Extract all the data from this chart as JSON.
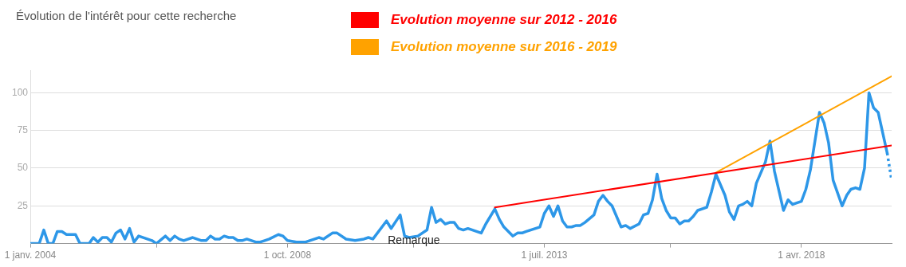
{
  "chart_data": {
    "type": "line",
    "title": "Évolution de l'intérêt pour cette recherche",
    "xlim": [
      "2004-01",
      "2019-12"
    ],
    "xticks": [
      {
        "value": "2004-01",
        "label": "1 janv. 2004"
      },
      {
        "value": "2006-05",
        "label": null
      },
      {
        "value": "2008-10",
        "label": "1 oct. 2008"
      },
      {
        "value": "2011-02",
        "label": null
      },
      {
        "value": "2013-07",
        "label": "1 juil. 2013"
      },
      {
        "value": "2015-11",
        "label": null
      },
      {
        "value": "2018-04",
        "label": "1 avr. 2018"
      }
    ],
    "ylim": [
      0,
      115
    ],
    "yticks": [
      25,
      50,
      75,
      100
    ],
    "grid": "y",
    "legend": "top",
    "marker": "none",
    "annotations": [
      {
        "text": "Remarque",
        "x": "2011-02",
        "y": 2
      }
    ],
    "series": [
      {
        "color": "#2d97e8",
        "line_style": "solid",
        "x": [
          "2004-01",
          "2004-03",
          "2004-04",
          "2004-05",
          "2004-06",
          "2004-07",
          "2004-08",
          "2004-09",
          "2004-11",
          "2004-12",
          "2005-02",
          "2005-03",
          "2005-04",
          "2005-05",
          "2005-06",
          "2005-07",
          "2005-08",
          "2005-09",
          "2005-10",
          "2005-11",
          "2005-12",
          "2006-01",
          "2006-03",
          "2006-04",
          "2006-05",
          "2006-07",
          "2006-08",
          "2006-09",
          "2006-10",
          "2006-11",
          "2007-01",
          "2007-03",
          "2007-04",
          "2007-05",
          "2007-06",
          "2007-07",
          "2007-08",
          "2007-09",
          "2007-10",
          "2007-11",
          "2007-12",
          "2008-01",
          "2008-03",
          "2008-04",
          "2008-05",
          "2008-06",
          "2008-08",
          "2008-09",
          "2008-10",
          "2008-12",
          "2009-02",
          "2009-05",
          "2009-06",
          "2009-08",
          "2009-09",
          "2009-11",
          "2010-01",
          "2010-03",
          "2010-04",
          "2010-05",
          "2010-08",
          "2010-09",
          "2010-11",
          "2010-12",
          "2011-01",
          "2011-03",
          "2011-05",
          "2011-06",
          "2011-07",
          "2011-08",
          "2011-09",
          "2011-10",
          "2011-11",
          "2011-12",
          "2012-01",
          "2012-02",
          "2012-05",
          "2012-06",
          "2012-08",
          "2012-09",
          "2012-10",
          "2012-12",
          "2013-01",
          "2013-02",
          "2013-03",
          "2013-06",
          "2013-07",
          "2013-08",
          "2013-09",
          "2013-10",
          "2013-11",
          "2013-12",
          "2014-01",
          "2014-02",
          "2014-03",
          "2014-04",
          "2014-06",
          "2014-07",
          "2014-08",
          "2014-09",
          "2014-10",
          "2014-12",
          "2015-01",
          "2015-02",
          "2015-04",
          "2015-05",
          "2015-06",
          "2015-07",
          "2015-08",
          "2015-09",
          "2015-10",
          "2015-11",
          "2015-12",
          "2016-01",
          "2016-02",
          "2016-03",
          "2016-04",
          "2016-05",
          "2016-07",
          "2016-08",
          "2016-09",
          "2016-11",
          "2016-12",
          "2017-01",
          "2017-02",
          "2017-03",
          "2017-04",
          "2017-05",
          "2017-06",
          "2017-08",
          "2017-09",
          "2017-10",
          "2017-12",
          "2018-01",
          "2018-02",
          "2018-04",
          "2018-05",
          "2018-06",
          "2018-08",
          "2018-09",
          "2018-10",
          "2018-11",
          "2019-01",
          "2019-02",
          "2019-03",
          "2019-04",
          "2019-05",
          "2019-06",
          "2019-07",
          "2019-08",
          "2019-09",
          "2019-11"
        ],
        "values": [
          0,
          0,
          9,
          0,
          0,
          8,
          8,
          6,
          6,
          0,
          0,
          4,
          1,
          4,
          4,
          1,
          7,
          9,
          3,
          10,
          1,
          5,
          3,
          2,
          0,
          5,
          2,
          5,
          3,
          2,
          4,
          2,
          2,
          5,
          3,
          3,
          5,
          4,
          4,
          2,
          2,
          3,
          1,
          1,
          2,
          3,
          6,
          5,
          2,
          1,
          1,
          4,
          3,
          7,
          7,
          3,
          2,
          3,
          4,
          3,
          15,
          10,
          19,
          5,
          4,
          5,
          9,
          24,
          14,
          16,
          13,
          14,
          14,
          10,
          9,
          10,
          7,
          13,
          23,
          16,
          11,
          5,
          7,
          7,
          8,
          11,
          20,
          25,
          18,
          25,
          15,
          11,
          11,
          12,
          12,
          14,
          19,
          28,
          32,
          28,
          25,
          11,
          12,
          10,
          13,
          19,
          20,
          29,
          46,
          30,
          22,
          17,
          17,
          13,
          15,
          15,
          18,
          22,
          24,
          34,
          46,
          32,
          21,
          16,
          25,
          26,
          28,
          25,
          40,
          54,
          68,
          48,
          22,
          29,
          26,
          28,
          36,
          49,
          87,
          80,
          67,
          42,
          25,
          32,
          36,
          37,
          36,
          50,
          100,
          90,
          87,
          60
        ]
      },
      {
        "color": "#2d97e8",
        "line_style": "dotted",
        "x": [
          "2019-11",
          "2019-12"
        ],
        "values": [
          60,
          42
        ]
      },
      {
        "name": "Evolution moyenne sur 2012 - 2016",
        "color": "#ff0000",
        "line_style": "solid",
        "x": [
          "2012-08",
          "2019-12"
        ],
        "values": [
          24,
          65
        ]
      },
      {
        "name": "Evolution moyenne sur 2016 - 2019",
        "color": "#ffa200",
        "line_style": "solid",
        "x": [
          "2016-09",
          "2019-12"
        ],
        "values": [
          47,
          111
        ]
      }
    ]
  }
}
